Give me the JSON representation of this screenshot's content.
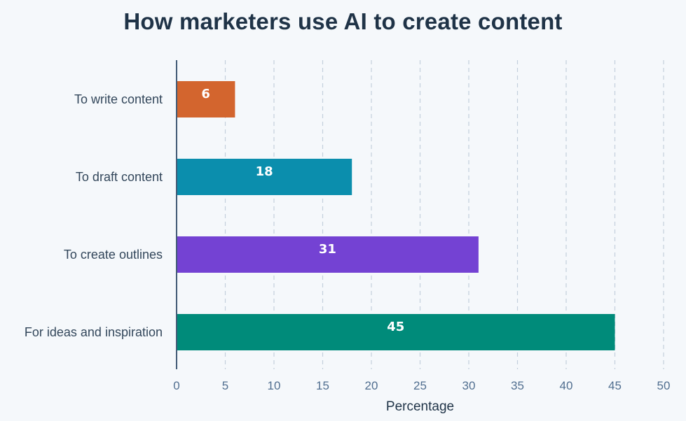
{
  "chart_data": {
    "type": "bar",
    "orientation": "horizontal",
    "title": "How marketers use AI to create content",
    "xlabel": "Percentage",
    "ylabel": "",
    "categories": [
      "To write content",
      "To draft content",
      "To create outlines",
      "For ideas and inspiration"
    ],
    "values": [
      6,
      18,
      31,
      45
    ],
    "colors": [
      "#d3652e",
      "#0b8ead",
      "#7442d3",
      "#008b7a"
    ],
    "xlim": [
      0,
      50
    ],
    "xticks": [
      0,
      5,
      10,
      15,
      20,
      25,
      30,
      35,
      40,
      45,
      50
    ],
    "grid": "vertical-dashed",
    "data_labels": true
  }
}
